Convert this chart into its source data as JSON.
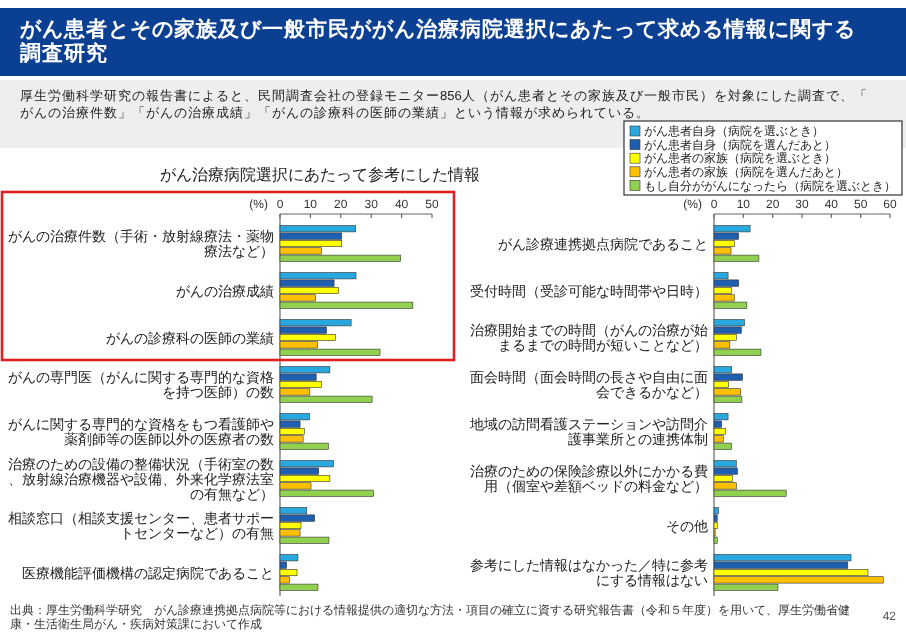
{
  "chart_data": [
    {
      "type": "bar",
      "orientation": "horizontal",
      "title": "がん患者とその家族及び一般市民ががん治療病院選択にあたって求める情報に関する調査研究",
      "subtitle": "厚生労働科学研究の報告書によると、民間調査会社の登録モニター856人（がん患者とその家族及び一般市民）を対象にした調査で、「がんの治療件数」「がんの治療成績」「がんの診療科の医師の業績」という情報が求められている。",
      "annotations": [
        "がん治療病院選択にあたって参考にした情報",
        "出典：厚生労働科学研究　がん診療連携拠点病院等における情報提供の適切な方法・項目の確立に資する研究報告書（令和５年度）を用いて、厚生労働省健康・生活衛生局がん・疾病対策課において作成",
        "42"
      ],
      "xlabel": "(%)",
      "xlim": [
        0,
        50
      ],
      "xticks": [
        0,
        10,
        20,
        30,
        40,
        50
      ],
      "categories": [
        "がんの治療件数（手術・放射線療法・薬物療法など）",
        "がんの治療成績",
        "がんの診療科の医師の業績",
        "がんの専門医（がんに関する専門的な資格を持つ医師）の数",
        "がんに関する専門的な資格をもつ看護師や薬剤師等の医師以外の医療者の数",
        "治療のための設備の整備状況（手術室の数、放射線治療機器や設備、外来化学療法室の有無など）",
        "相談窓口（相談支援センター、患者サポートセンターなど）の有無",
        "医療機能評価機構の認定病院であること"
      ],
      "series": [
        {
          "color": "#29a8e0",
          "values": [
            24.9,
            25,
            23.4,
            16.4,
            9.7,
            17.6,
            8.8,
            5.9
          ]
        },
        {
          "color": "#1f5fb0",
          "values": [
            20.3,
            17.8,
            15.3,
            11.9,
            6.6,
            12.7,
            11.4,
            2.2
          ]
        },
        {
          "color": "#ffff00",
          "values": [
            20.3,
            19.3,
            18.3,
            13.6,
            8,
            16.4,
            6.9,
            5.6
          ]
        },
        {
          "color": "#ffc000",
          "values": [
            13.6,
            11.7,
            12.4,
            9.8,
            7.6,
            10.2,
            6.6,
            3.1
          ]
        },
        {
          "color": "#92d050",
          "values": [
            39.7,
            43.7,
            32.9,
            30.3,
            15.9,
            30.7,
            16.1,
            12.5
          ]
        }
      ]
    },
    {
      "type": "bar",
      "orientation": "horizontal",
      "xlabel": "(%)",
      "xlim": [
        0,
        60
      ],
      "xticks": [
        0,
        10,
        20,
        30,
        40,
        50,
        60
      ],
      "legend": "top",
      "categories": [
        "がん診療連携拠点病院であること",
        "受付時間（受診可能な時間帯や日時）",
        "治療開始までの時間（がんの治療が始まるまでの時間が短いことなど）",
        "面会時間（面会時間の長さや自由に面会できるかなど）",
        "地域の訪問看護ステーションや訪問介護事業所との連携体制",
        "治療のための保険診療以外にかかる費用（個室や差額ベッドの料金など）",
        "その他",
        "参考にした情報はなかった／特に参考にする情報はない"
      ],
      "series": [
        {
          "name": "がん患者自身（病院を選ぶとき）",
          "color": "#29a8e0",
          "values": [
            12.3,
            4.8,
            10.4,
            6,
            4.8,
            7.6,
            1.5,
            46.7
          ]
        },
        {
          "name": "がん患者自身（病院を選んだあと）",
          "color": "#1f5fb0",
          "values": [
            8.4,
            8.4,
            9.3,
            9.7,
            2.6,
            8,
            1.1,
            45.6
          ]
        },
        {
          "name": "がん患者の家族（病院を選ぶとき）",
          "color": "#ffff00",
          "values": [
            6.9,
            6,
            7.6,
            5,
            3.9,
            6.3,
            1.1,
            52.5
          ]
        },
        {
          "name": "がん患者の家族（病院を選んだあと）",
          "color": "#ffc000",
          "values": [
            5.8,
            6.9,
            5.4,
            9.1,
            3.2,
            7.6,
            0.4,
            57.7
          ]
        },
        {
          "name": "もし自分ががんになったら（病院を選ぶとき）",
          "color": "#92d050",
          "values": [
            15.3,
            11.2,
            16,
            9.5,
            6,
            24.6,
            1.1,
            21.8
          ]
        }
      ]
    }
  ]
}
